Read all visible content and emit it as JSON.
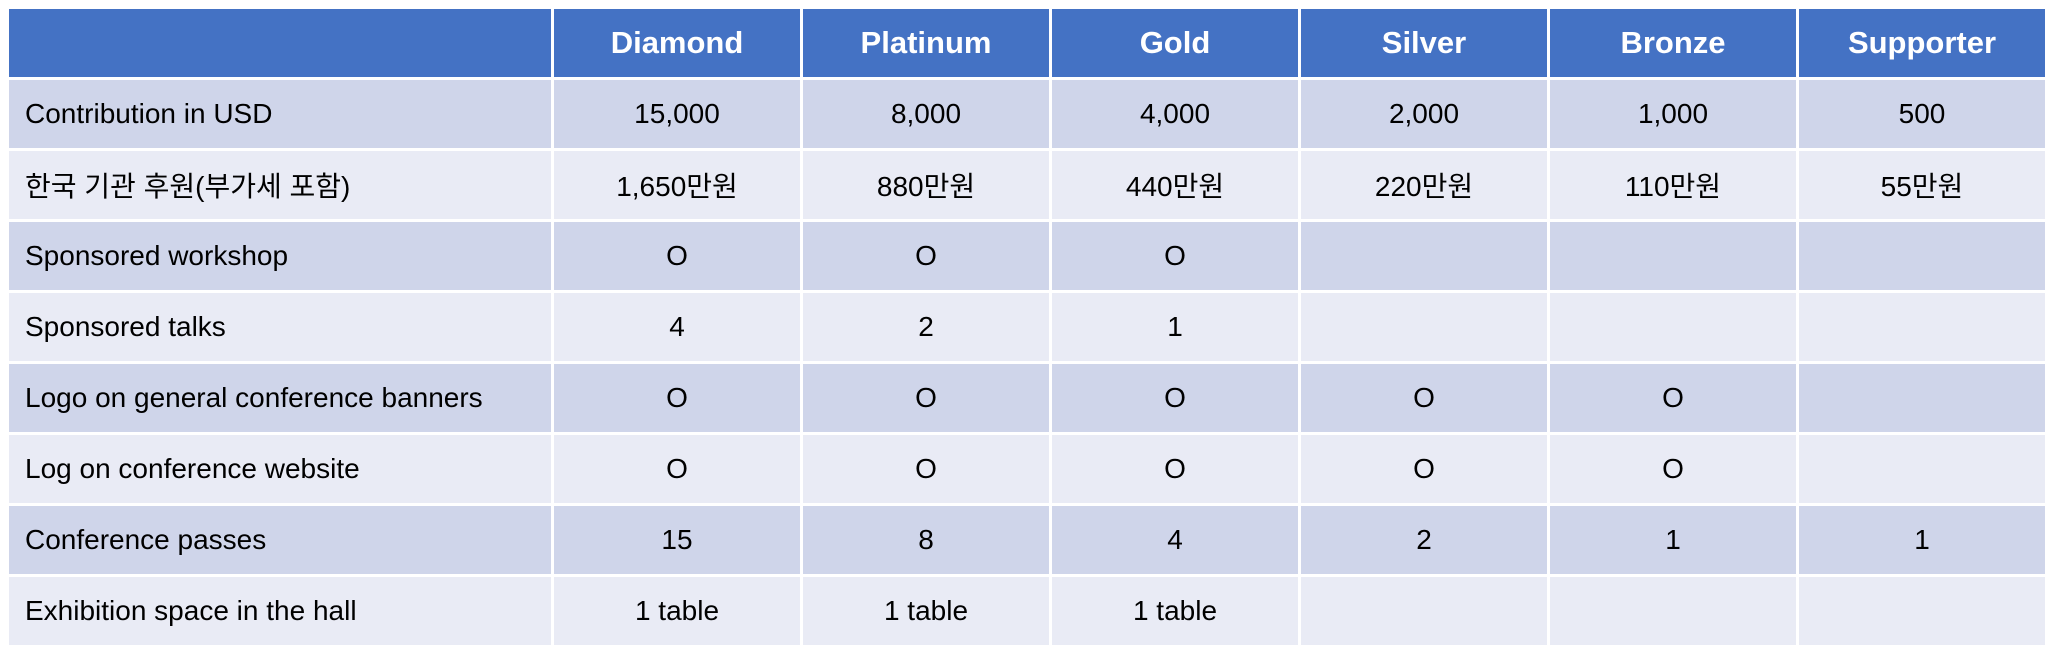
{
  "table": {
    "corner": "",
    "tiers": [
      "Diamond",
      "Platinum",
      "Gold",
      "Silver",
      "Bronze",
      "Supporter"
    ],
    "rows": [
      {
        "label": "Contribution in USD",
        "cells": [
          "15,000",
          "8,000",
          "4,000",
          "2,000",
          "1,000",
          "500"
        ]
      },
      {
        "label": "한국 기관 후원(부가세 포함)",
        "cells": [
          "1,650만원",
          "880만원",
          "440만원",
          "220만원",
          "110만원",
          "55만원"
        ]
      },
      {
        "label": "Sponsored workshop",
        "cells": [
          "O",
          "O",
          "O",
          "",
          "",
          ""
        ]
      },
      {
        "label": "Sponsored talks",
        "cells": [
          "4",
          "2",
          "1",
          "",
          "",
          ""
        ]
      },
      {
        "label": "Logo on general conference banners",
        "cells": [
          "O",
          "O",
          "O",
          "O",
          "O",
          ""
        ]
      },
      {
        "label": "Log on conference website",
        "cells": [
          "O",
          "O",
          "O",
          "O",
          "O",
          ""
        ]
      },
      {
        "label": "Conference passes",
        "cells": [
          "15",
          "8",
          "4",
          "2",
          "1",
          "1"
        ]
      },
      {
        "label": "Exhibition space in the hall",
        "cells": [
          "1 table",
          "1 table",
          "1 table",
          "",
          "",
          ""
        ]
      }
    ]
  },
  "colors": {
    "header_bg": "#4472c4",
    "row_odd_bg": "#cfd5ea",
    "row_even_bg": "#e9ebf5"
  }
}
